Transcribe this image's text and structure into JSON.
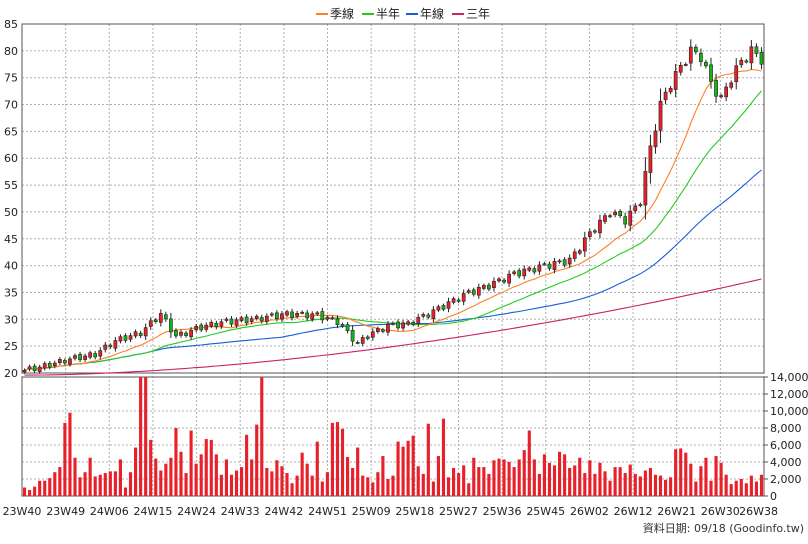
{
  "chart_data": {
    "type": "candlestick-weekly-with-volume",
    "legend": [
      {
        "label": "季線",
        "color": "#ff7f27"
      },
      {
        "label": "半年",
        "color": "#22cc22"
      },
      {
        "label": "年線",
        "color": "#1a5fd6"
      },
      {
        "label": "三年",
        "color": "#cc2266"
      }
    ],
    "price_axis": {
      "min": 20,
      "max": 85,
      "ticks": [
        20,
        25,
        30,
        35,
        40,
        45,
        50,
        55,
        60,
        65,
        70,
        75,
        80,
        85
      ]
    },
    "volume_axis": {
      "min": 0,
      "max": 14000,
      "ticks": [
        "0",
        "2,000",
        "4,000",
        "6,000",
        "8,000",
        "10,000",
        "12,000",
        "14,000"
      ]
    },
    "x_labels": [
      "23W40",
      "23W49",
      "24W06",
      "24W15",
      "24W24",
      "24W33",
      "24W42",
      "24W51",
      "25W09",
      "25W18",
      "25W27",
      "25W36",
      "25W45",
      "26W02",
      "26W12",
      "26W21",
      "26W30",
      "26W38"
    ],
    "close_anchors": [
      [
        0,
        20.5
      ],
      [
        4,
        21.3
      ],
      [
        9,
        22.6
      ],
      [
        14,
        23.5
      ],
      [
        18,
        26
      ],
      [
        23,
        27.5
      ],
      [
        27,
        31
      ],
      [
        30,
        26.8
      ],
      [
        35,
        28.6
      ],
      [
        40,
        29.6
      ],
      [
        45,
        30
      ],
      [
        52,
        31
      ],
      [
        58,
        30.8
      ],
      [
        62,
        29.6
      ],
      [
        64,
        27.5
      ],
      [
        66,
        25.5
      ],
      [
        68,
        27
      ],
      [
        72,
        28.8
      ],
      [
        76,
        29.2
      ],
      [
        80,
        31
      ],
      [
        84,
        33
      ],
      [
        88,
        35
      ],
      [
        92,
        36.3
      ],
      [
        97,
        38.5
      ],
      [
        103,
        40
      ],
      [
        108,
        41
      ],
      [
        112,
        46
      ],
      [
        116,
        50
      ],
      [
        119,
        48.5
      ],
      [
        122,
        52
      ],
      [
        124,
        62
      ],
      [
        126,
        70
      ],
      [
        128,
        74
      ],
      [
        130,
        77
      ],
      [
        132,
        80
      ],
      [
        134,
        79
      ],
      [
        136,
        74
      ],
      [
        138,
        71
      ],
      [
        140,
        75
      ],
      [
        142,
        78
      ],
      [
        144,
        80
      ],
      [
        146,
        78.5
      ]
    ],
    "volume_values": [
      1000,
      700,
      1100,
      1800,
      1800,
      2100,
      2800,
      3400,
      8600,
      9800,
      4500,
      2200,
      2800,
      4500,
      2300,
      2500,
      2700,
      2900,
      2900,
      4300,
      1000,
      2800,
      5700,
      15000,
      15000,
      6600,
      4400,
      3000,
      3800,
      4500,
      8000,
      5200,
      2700,
      7700,
      3800,
      4900,
      6700,
      6600,
      4900,
      2500,
      4300,
      2500,
      3000,
      3400,
      7200,
      4300,
      8400,
      15000,
      3300,
      2900,
      4200,
      3500,
      2700,
      1500,
      2400,
      5100,
      3800,
      2400,
      6400,
      1700,
      2800,
      8600,
      8700,
      7900,
      4600,
      3300,
      5700,
      2400,
      2200,
      1600,
      2800,
      4700,
      2000,
      2400,
      6400,
      5800,
      6500,
      7100,
      3500,
      2600,
      8500,
      1700,
      4700,
      9100,
      2200,
      3300,
      2700,
      3600,
      1500,
      4500,
      3400,
      3400,
      2600,
      4200,
      4400,
      4300,
      4000,
      3400,
      4300,
      5400,
      7700,
      4300,
      2600,
      4900,
      3900,
      3600,
      5200,
      4900,
      3300,
      3600,
      4500,
      2700,
      4200,
      2600,
      3900,
      2900,
      1800,
      3400,
      3400,
      2700,
      3700,
      2600,
      2300,
      3000,
      3300,
      2500,
      2400,
      1900,
      2200,
      5500,
      5600,
      5100,
      3800,
      1700,
      3500,
      4500,
      1800,
      4700,
      3900,
      2500,
      1400,
      1800,
      2000,
      1500,
      2400,
      1700,
      2500
    ]
  },
  "ui": {
    "footer": "資料日期: 09/18  (Goodinfo.tw)"
  }
}
